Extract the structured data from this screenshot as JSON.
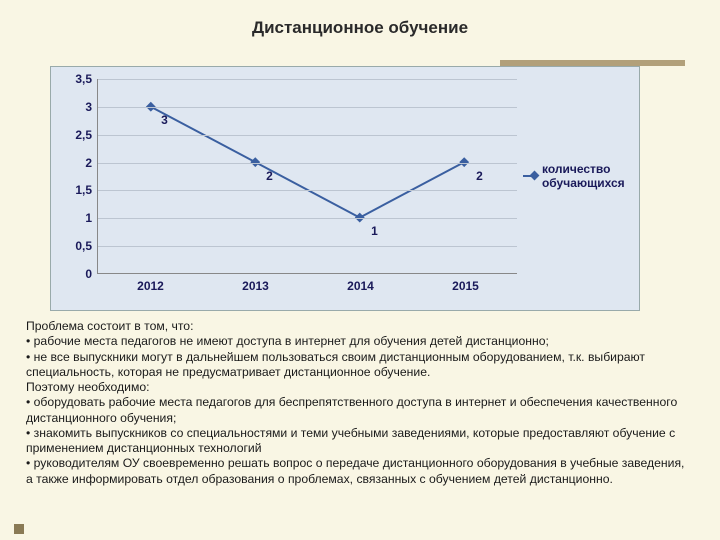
{
  "title": "Дистанционное обучение",
  "chart": {
    "type": "line",
    "background_color": "#dfe7f1",
    "grid_color": "#bcc5d1",
    "series_color": "#3a5fa0",
    "marker": "diamond",
    "marker_size": 7,
    "line_width": 2,
    "categories": [
      "2012",
      "2013",
      "2014",
      "2015"
    ],
    "values": [
      3,
      2,
      1,
      2
    ],
    "data_labels": [
      "3",
      "2",
      "1",
      "2"
    ],
    "ylim": [
      0,
      3.5
    ],
    "ytick_step": 0.5,
    "yticks": [
      "0",
      "0,5",
      "1",
      "1,5",
      "2",
      "2,5",
      "3",
      "3,5"
    ],
    "legend_label": "количество обучающихся",
    "tick_color": "#1a1a5a",
    "tick_fontsize": 12
  },
  "text": {
    "p1": "Проблема состоит в том, что:",
    "b1": "• рабочие места педагогов не имеют доступа в интернет для обучения детей дистанционно;",
    "b2": "• не все выпускники могут в дальнейшем пользоваться своим дистанционным оборудованием, т.к. выбирают специальность, которая не предусматривает дистанционное обучение.",
    "p2": "Поэтому необходимо:",
    "b3": "• оборудовать рабочие места педагогов для беспрепятственного доступа в интернет и обеспечения качественного дистанционного обучения;",
    "b4": "• знакомить выпускников со специальностями и теми учебными заведениями, которые предоставляют обучение с применением дистанционных технологий",
    "b5": "• руководителям ОУ своевременно решать вопрос о передаче дистанционного оборудования в учебные заведения, а также информировать отдел образования о проблемах, связанных с обучением детей дистанционно."
  }
}
